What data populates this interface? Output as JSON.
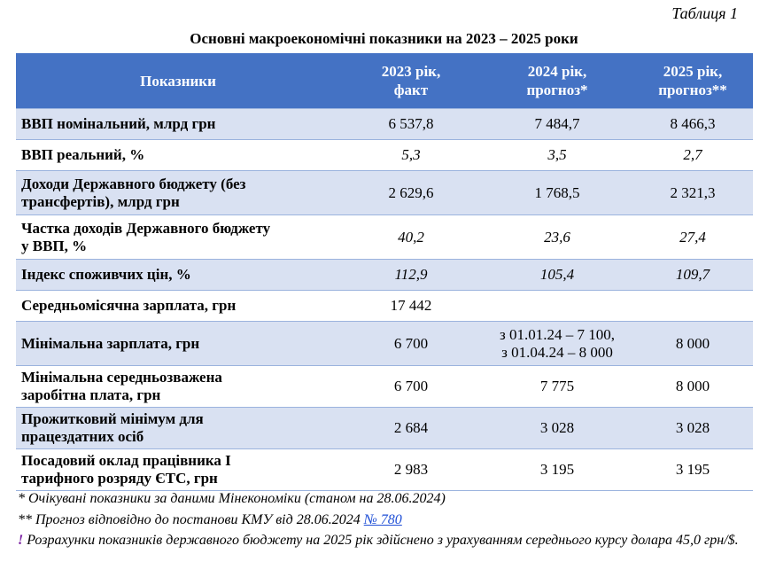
{
  "table_number": "Таблиця 1",
  "title": "Основні макроекономічні показники на 2023 – 2025 роки",
  "headers": {
    "indicator": "Показники",
    "y2023_l1": "2023 рік,",
    "y2023_l2": "факт",
    "y2024_l1": "2024 рік,",
    "y2024_l2": "прогноз*",
    "y2025_l1": "2025 рік,",
    "y2025_l2": "прогноз**"
  },
  "rows": [
    {
      "label": "ВВП номінальний, млрд грн",
      "v2023": "6 537,8",
      "v2024": "7 484,7",
      "v2025": "8 466,3"
    },
    {
      "label": "ВВП реальний, %",
      "v2023": "5,3",
      "v2024": "3,5",
      "v2025": "2,7"
    },
    {
      "label_l1": "Доходи Державного бюджету (без",
      "label_l2": "трансфертів), млрд грн",
      "v2023": "2 629,6",
      "v2024": "1 768,5",
      "v2025": "2 321,3"
    },
    {
      "label_l1": "Частка доходів Державного бюджету",
      "label_l2": "у ВВП, %",
      "v2023": "40,2",
      "v2024": "23,6",
      "v2025": "27,4"
    },
    {
      "label": "Індекс споживчих цін, %",
      "v2023": "112,9",
      "v2024": "105,4",
      "v2025": "109,7"
    },
    {
      "label": "Середньомісячна зарплата, грн",
      "v2023": "17 442",
      "v2024": "",
      "v2025": ""
    },
    {
      "label": "Мінімальна зарплата, грн",
      "v2023": "6 700",
      "v2024_l1": "з 01.01.24 – 7 100,",
      "v2024_l2": "з 01.04.24 – 8 000",
      "v2025": "8 000"
    },
    {
      "label_l1": "Мінімальна середньозважена",
      "label_l2": "заробітна плата, грн",
      "v2023": "6 700",
      "v2024": "7 775",
      "v2025": "8 000"
    },
    {
      "label_l1": "Прожитковий мінімум для",
      "label_l2": "працездатних осіб",
      "v2023": "2 684",
      "v2024": "3 028",
      "v2025": "3 028"
    },
    {
      "label_l1": "Посадовий оклад працівника I",
      "label_l2": "тарифного розряду ЄТС, грн",
      "v2023": "2 983",
      "v2024": "3 195",
      "v2025": "3 195"
    }
  ],
  "notes": {
    "n1": "* Очікувані показники за даними Мінекономіки (станом на 28.06.2024)",
    "n2_text": "** Прогноз відповідно до постанови КМУ від 28.06.2024 ",
    "n2_link": "№ 780",
    "n3_mark": "!",
    "n3_text": " Розрахунки показників державного бюджету на 2025 рік здійснено з урахуванням середнього курсу долара 45,0 грн/$."
  }
}
